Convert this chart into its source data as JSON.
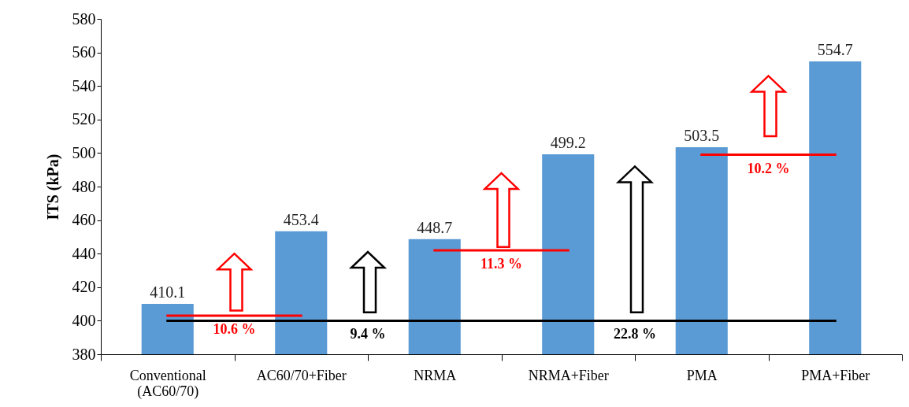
{
  "chart_data": {
    "type": "bar",
    "ylabel": "ITS (kPa)",
    "categories": [
      "Conventional (AC60/70)",
      "AC60/70+Fiber",
      "NRMA",
      "NRMA+Fiber",
      "PMA",
      "PMA+Fiber"
    ],
    "series": [
      {
        "color": "#5b9bd5",
        "values": [
          410.1,
          453.4,
          448.7,
          499.2,
          503.5,
          554.7
        ],
        "value_labels": [
          "410.1",
          "453.4",
          "448.7",
          "499.2",
          "503.5",
          "554.7"
        ]
      },
      {
        "type": "line",
        "color": "#000000",
        "values": [
          400,
          400,
          400,
          400,
          400,
          400
        ]
      },
      {
        "type": "line",
        "color": "#ff0000",
        "values": [
          403,
          403,
          null,
          null,
          null,
          null
        ]
      },
      {
        "type": "line",
        "color": "#ff0000",
        "values": [
          null,
          null,
          442,
          442,
          null,
          null
        ]
      },
      {
        "type": "line",
        "color": "#ff0000",
        "values": [
          null,
          null,
          null,
          null,
          499,
          499
        ]
      }
    ],
    "ylim": [
      380,
      580
    ],
    "yticks": [
      380,
      400,
      420,
      440,
      460,
      480,
      500,
      520,
      540,
      560,
      580
    ],
    "grid": false,
    "annotations": [
      "10.6 %",
      "9.4 %",
      "11.3 %",
      "22.8 %",
      "10.2 %"
    ]
  }
}
